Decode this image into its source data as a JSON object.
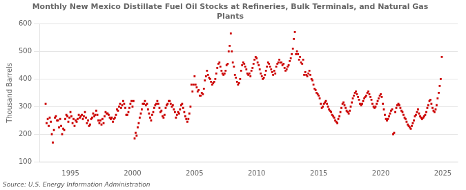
{
  "chart_data": {
    "type": "scatter",
    "title": "Monthly New Mexico Distillate Fuel Oil Stocks at Refineries, Bulk Terminals, and Natural Gas\nPlants",
    "ylabel": "Thousand Barrels",
    "annotations": [
      "Source: U.S. Energy Information Administration"
    ],
    "color": "#cc0000",
    "marker": "square",
    "grid": "y",
    "xlim": [
      1992.5,
      2026.2
    ],
    "xticks": [
      1995,
      2000,
      2005,
      2010,
      2015,
      2020,
      2025
    ],
    "ylim": [
      100,
      600
    ],
    "yticks": [
      100,
      200,
      300,
      400,
      500,
      600
    ],
    "x": [
      1993.0,
      1993.08,
      1993.17,
      1993.25,
      1993.33,
      1993.42,
      1993.5,
      1993.58,
      1993.67,
      1993.75,
      1993.83,
      1993.92,
      1994.0,
      1994.08,
      1994.17,
      1994.25,
      1994.33,
      1994.42,
      1994.5,
      1994.58,
      1994.67,
      1994.75,
      1994.83,
      1994.92,
      1995.0,
      1995.08,
      1995.17,
      1995.25,
      1995.33,
      1995.42,
      1995.5,
      1995.58,
      1995.67,
      1995.75,
      1995.83,
      1995.92,
      1996.0,
      1996.08,
      1996.17,
      1996.25,
      1996.33,
      1996.42,
      1996.5,
      1996.58,
      1996.67,
      1996.75,
      1996.83,
      1996.92,
      1997.0,
      1997.08,
      1997.17,
      1997.25,
      1997.33,
      1997.42,
      1997.5,
      1997.58,
      1997.67,
      1997.75,
      1997.83,
      1997.92,
      1998.0,
      1998.08,
      1998.17,
      1998.25,
      1998.33,
      1998.42,
      1998.5,
      1998.58,
      1998.67,
      1998.75,
      1998.83,
      1998.92,
      1999.0,
      1999.08,
      1999.17,
      1999.25,
      1999.33,
      1999.42,
      1999.5,
      1999.58,
      1999.67,
      1999.75,
      1999.83,
      1999.92,
      2000.0,
      2000.08,
      2000.17,
      2000.25,
      2000.33,
      2000.42,
      2000.5,
      2000.58,
      2000.67,
      2000.75,
      2000.83,
      2000.92,
      2001.0,
      2001.08,
      2001.17,
      2001.25,
      2001.33,
      2001.42,
      2001.5,
      2001.58,
      2001.67,
      2001.75,
      2001.83,
      2001.92,
      2002.0,
      2002.08,
      2002.17,
      2002.25,
      2002.33,
      2002.42,
      2002.5,
      2002.58,
      2002.67,
      2002.75,
      2002.83,
      2002.92,
      2003.0,
      2003.08,
      2003.17,
      2003.25,
      2003.33,
      2003.42,
      2003.5,
      2003.58,
      2003.67,
      2003.75,
      2003.83,
      2003.92,
      2004.0,
      2004.08,
      2004.17,
      2004.25,
      2004.33,
      2004.42,
      2004.5,
      2004.58,
      2004.67,
      2004.75,
      2004.83,
      2004.92,
      2005.0,
      2005.08,
      2005.17,
      2005.25,
      2005.33,
      2005.42,
      2005.5,
      2005.58,
      2005.67,
      2005.75,
      2005.83,
      2005.92,
      2006.0,
      2006.08,
      2006.17,
      2006.25,
      2006.33,
      2006.42,
      2006.5,
      2006.58,
      2006.67,
      2006.75,
      2006.83,
      2006.92,
      2007.0,
      2007.08,
      2007.17,
      2007.25,
      2007.33,
      2007.42,
      2007.5,
      2007.58,
      2007.67,
      2007.75,
      2007.83,
      2007.92,
      2008.0,
      2008.08,
      2008.17,
      2008.25,
      2008.33,
      2008.42,
      2008.5,
      2008.58,
      2008.67,
      2008.75,
      2008.83,
      2008.92,
      2009.0,
      2009.08,
      2009.17,
      2009.25,
      2009.33,
      2009.42,
      2009.5,
      2009.58,
      2009.67,
      2009.75,
      2009.83,
      2009.92,
      2010.0,
      2010.08,
      2010.17,
      2010.25,
      2010.33,
      2010.42,
      2010.5,
      2010.58,
      2010.67,
      2010.75,
      2010.83,
      2010.92,
      2011.0,
      2011.08,
      2011.17,
      2011.25,
      2011.33,
      2011.42,
      2011.5,
      2011.58,
      2011.67,
      2011.75,
      2011.83,
      2011.92,
      2012.0,
      2012.08,
      2012.17,
      2012.25,
      2012.33,
      2012.42,
      2012.5,
      2012.58,
      2012.67,
      2012.75,
      2012.83,
      2012.92,
      2013.0,
      2013.08,
      2013.17,
      2013.25,
      2013.33,
      2013.42,
      2013.5,
      2013.58,
      2013.67,
      2013.75,
      2013.83,
      2013.92,
      2014.0,
      2014.08,
      2014.17,
      2014.25,
      2014.33,
      2014.42,
      2014.5,
      2014.58,
      2014.67,
      2014.75,
      2014.83,
      2014.92,
      2015.0,
      2015.08,
      2015.17,
      2015.25,
      2015.33,
      2015.42,
      2015.5,
      2015.58,
      2015.67,
      2015.75,
      2015.83,
      2015.92,
      2016.0,
      2016.08,
      2016.17,
      2016.25,
      2016.33,
      2016.42,
      2016.5,
      2016.58,
      2016.67,
      2016.75,
      2016.83,
      2016.92,
      2017.0,
      2017.08,
      2017.17,
      2017.25,
      2017.33,
      2017.42,
      2017.5,
      2017.58,
      2017.67,
      2017.75,
      2017.83,
      2017.92,
      2018.0,
      2018.08,
      2018.17,
      2018.25,
      2018.33,
      2018.42,
      2018.5,
      2018.58,
      2018.67,
      2018.75,
      2018.83,
      2018.92,
      2019.0,
      2019.08,
      2019.17,
      2019.25,
      2019.33,
      2019.42,
      2019.5,
      2019.58,
      2019.67,
      2019.75,
      2019.83,
      2019.92,
      2020.0,
      2020.08,
      2020.17,
      2020.25,
      2020.33,
      2020.42,
      2020.5,
      2020.58,
      2020.67,
      2020.75,
      2020.83,
      2020.92,
      2021.0,
      2021.08,
      2021.17,
      2021.25,
      2021.33,
      2021.42,
      2021.5,
      2021.58,
      2021.67,
      2021.75,
      2021.83,
      2021.92,
      2022.0,
      2022.08,
      2022.17,
      2022.25,
      2022.33,
      2022.42,
      2022.5,
      2022.58,
      2022.67,
      2022.75,
      2022.83,
      2022.92,
      2023.0,
      2023.08,
      2023.17,
      2023.25,
      2023.33,
      2023.42,
      2023.5,
      2023.58,
      2023.67,
      2023.75,
      2023.83,
      2023.92,
      2024.0,
      2024.08,
      2024.17,
      2024.25,
      2024.33,
      2024.42,
      2024.5,
      2024.58,
      2024.67,
      2024.75,
      2024.83,
      2024.92
    ],
    "values": [
      310,
      240,
      255,
      230,
      260,
      245,
      200,
      170,
      215,
      260,
      265,
      250,
      250,
      225,
      255,
      230,
      200,
      220,
      215,
      255,
      270,
      265,
      245,
      260,
      280,
      265,
      240,
      255,
      230,
      250,
      245,
      255,
      270,
      260,
      265,
      270,
      255,
      265,
      280,
      260,
      240,
      250,
      230,
      235,
      255,
      260,
      275,
      265,
      270,
      285,
      270,
      250,
      240,
      250,
      235,
      255,
      240,
      265,
      280,
      275,
      275,
      270,
      260,
      255,
      260,
      245,
      255,
      260,
      270,
      290,
      285,
      300,
      310,
      295,
      305,
      320,
      310,
      295,
      270,
      270,
      280,
      295,
      310,
      320,
      300,
      320,
      185,
      205,
      195,
      225,
      240,
      260,
      275,
      290,
      310,
      310,
      320,
      305,
      310,
      290,
      275,
      260,
      250,
      270,
      280,
      295,
      305,
      310,
      320,
      310,
      295,
      280,
      285,
      265,
      260,
      270,
      295,
      305,
      310,
      320,
      320,
      310,
      300,
      305,
      290,
      280,
      260,
      270,
      280,
      275,
      290,
      305,
      310,
      295,
      280,
      265,
      255,
      245,
      255,
      275,
      300,
      380,
      355,
      380,
      410,
      380,
      370,
      355,
      360,
      340,
      340,
      350,
      345,
      365,
      395,
      410,
      430,
      415,
      405,
      400,
      390,
      380,
      385,
      390,
      400,
      420,
      440,
      455,
      460,
      445,
      430,
      420,
      415,
      420,
      430,
      450,
      455,
      500,
      520,
      565,
      500,
      460,
      445,
      415,
      405,
      390,
      380,
      385,
      400,
      430,
      450,
      460,
      455,
      445,
      435,
      420,
      415,
      420,
      410,
      430,
      440,
      455,
      470,
      480,
      475,
      460,
      450,
      435,
      420,
      410,
      400,
      405,
      415,
      430,
      445,
      460,
      455,
      445,
      435,
      425,
      415,
      430,
      420,
      445,
      455,
      460,
      470,
      460,
      460,
      450,
      455,
      440,
      430,
      435,
      445,
      450,
      465,
      475,
      490,
      510,
      545,
      570,
      490,
      500,
      490,
      470,
      480,
      460,
      455,
      470,
      415,
      425,
      415,
      410,
      420,
      430,
      415,
      400,
      395,
      380,
      365,
      360,
      350,
      345,
      340,
      330,
      310,
      295,
      300,
      310,
      315,
      320,
      310,
      300,
      290,
      285,
      280,
      270,
      265,
      260,
      250,
      245,
      240,
      255,
      265,
      280,
      295,
      310,
      315,
      305,
      295,
      285,
      280,
      275,
      285,
      300,
      315,
      330,
      340,
      350,
      355,
      345,
      335,
      325,
      310,
      305,
      310,
      320,
      330,
      335,
      340,
      350,
      355,
      345,
      335,
      325,
      310,
      300,
      295,
      300,
      310,
      320,
      330,
      340,
      345,
      335,
      310,
      290,
      270,
      255,
      250,
      255,
      265,
      275,
      285,
      290,
      200,
      205,
      280,
      295,
      305,
      310,
      305,
      295,
      285,
      280,
      270,
      260,
      255,
      245,
      235,
      230,
      225,
      220,
      230,
      240,
      250,
      265,
      270,
      280,
      290,
      275,
      265,
      260,
      255,
      260,
      265,
      270,
      280,
      295,
      305,
      320,
      325,
      310,
      295,
      285,
      280,
      290,
      305,
      330,
      350,
      375,
      400,
      480
    ]
  }
}
